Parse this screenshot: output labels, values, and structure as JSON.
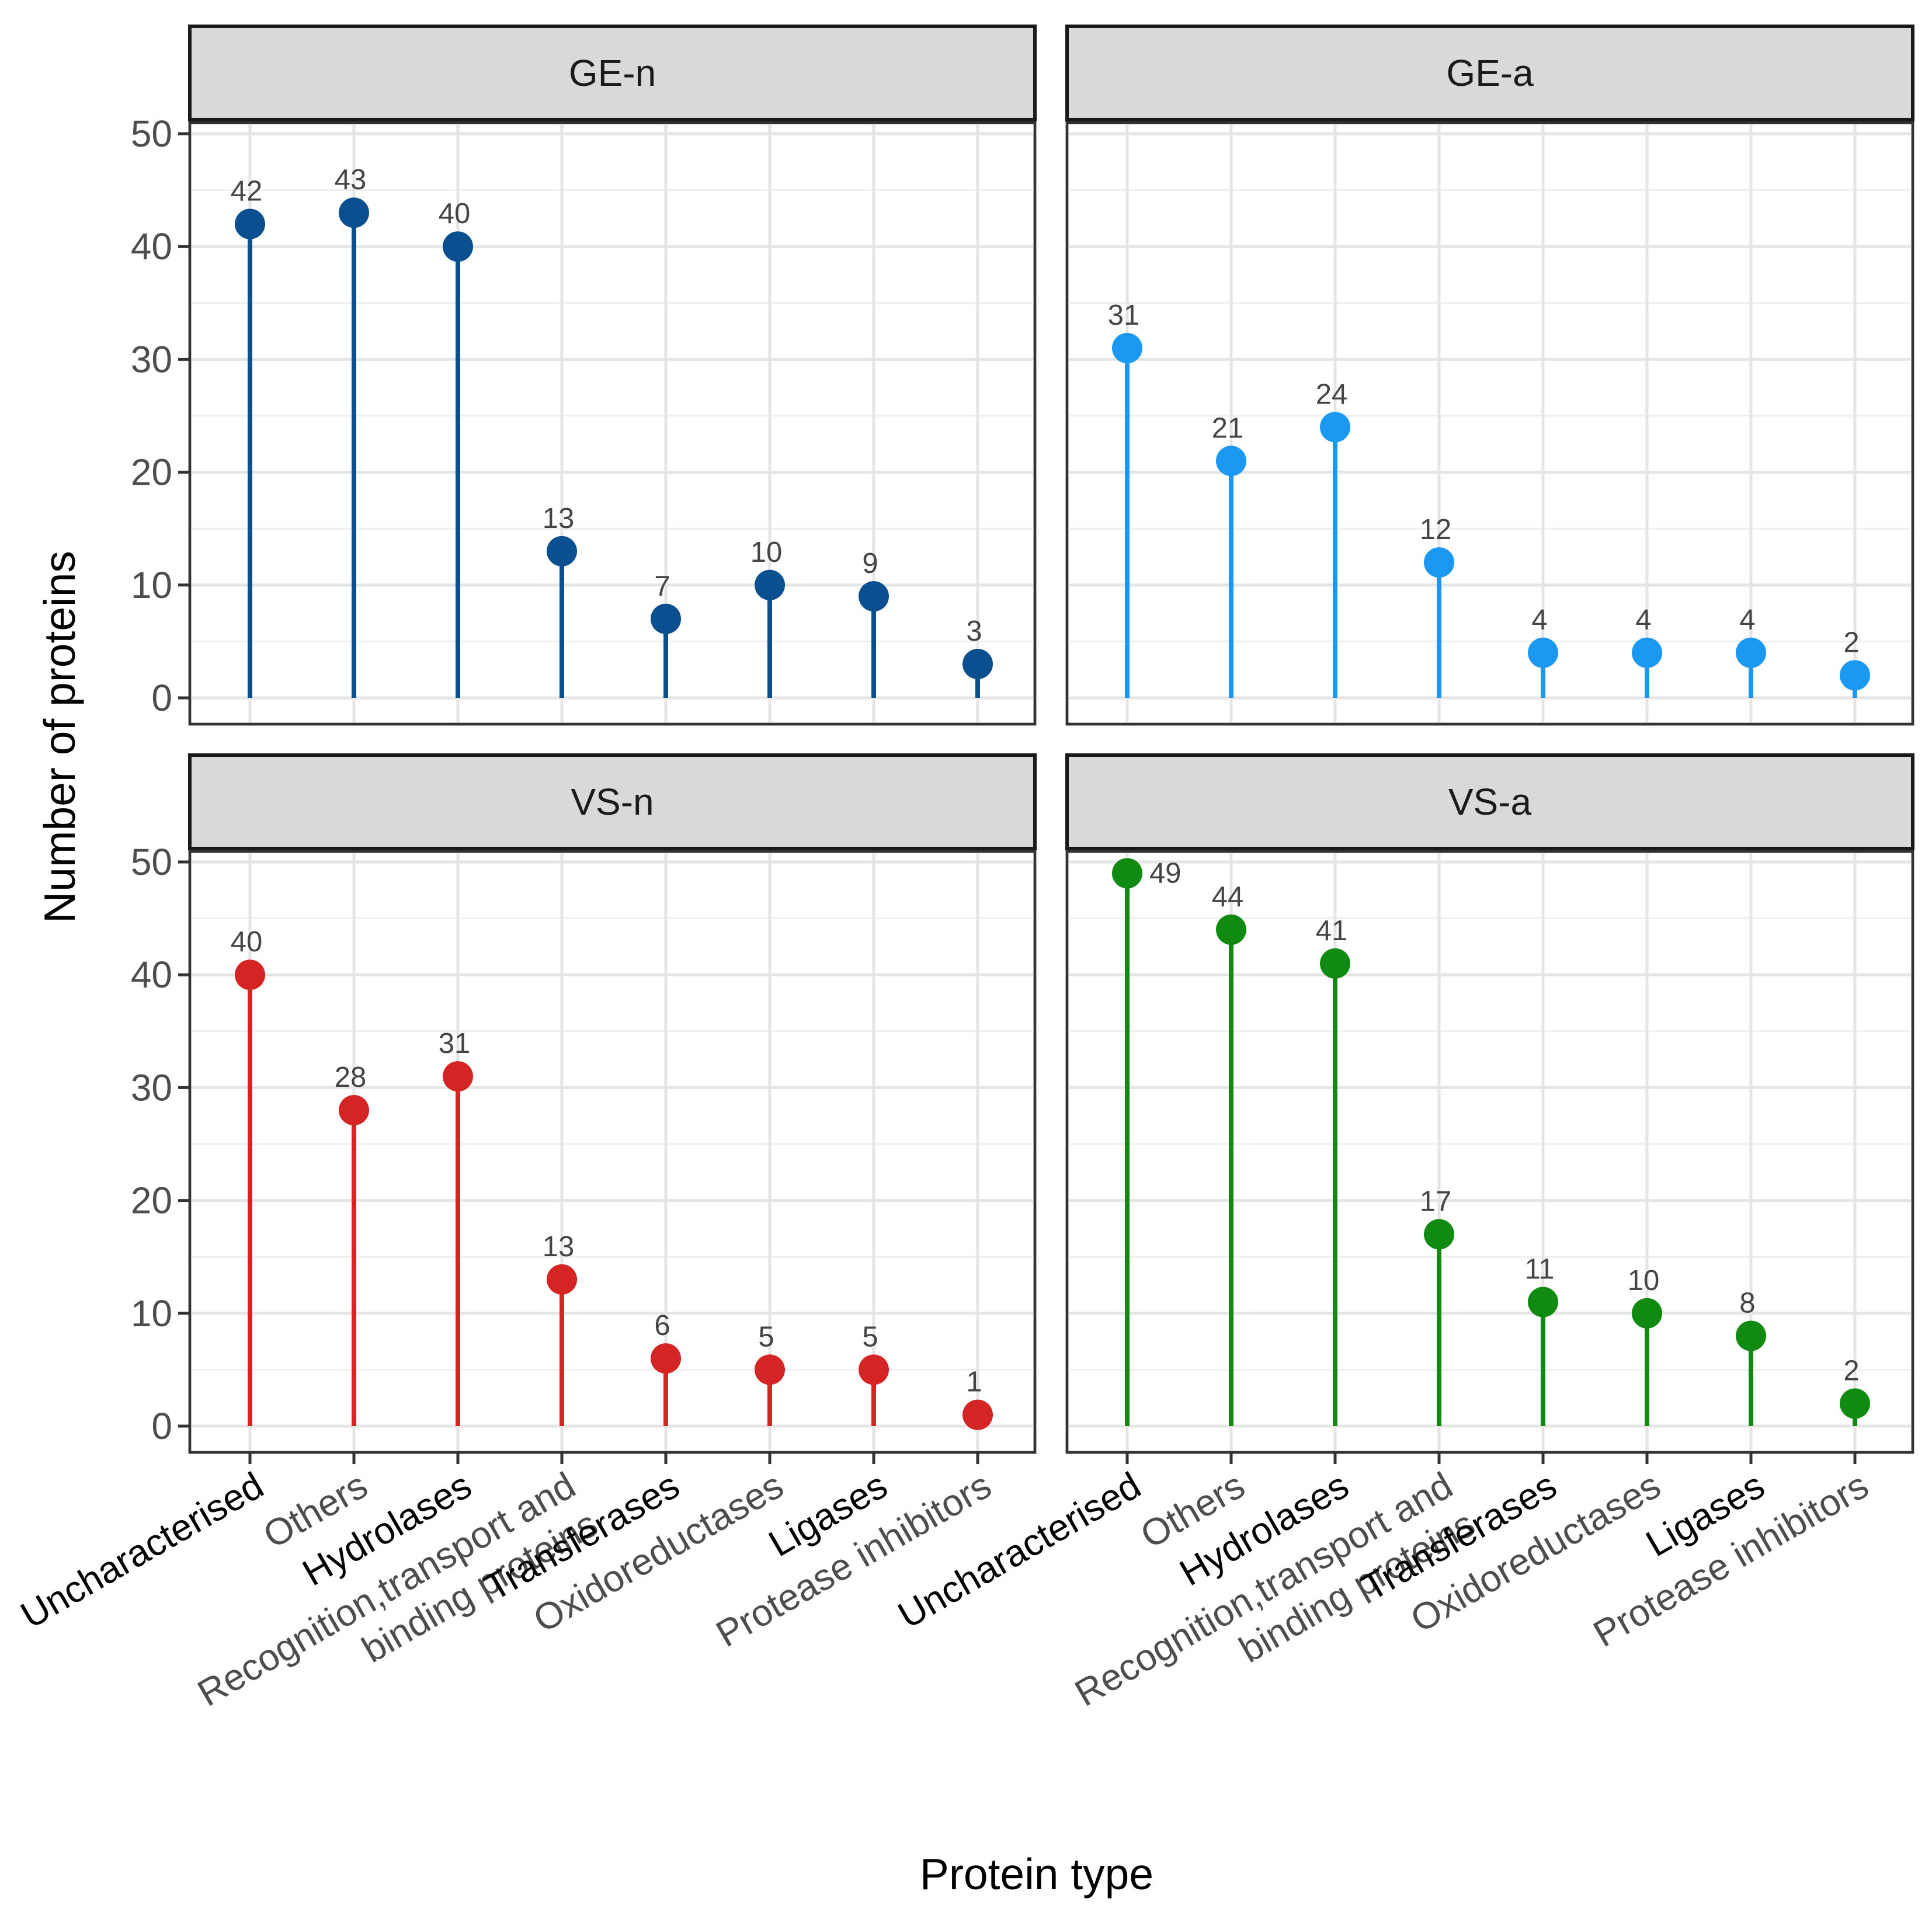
{
  "chart_data": {
    "type": "lollipop",
    "xlabel": "Protein type",
    "ylabel": "Number of proteins",
    "ylim": [
      0,
      52
    ],
    "yticks": [
      0,
      10,
      20,
      30,
      40,
      50
    ],
    "grid": true,
    "categories": [
      "Uncharacterised",
      "Others",
      "Hydrolases",
      "Recognition,transport and binding proteins",
      "Transferases",
      "Oxidoreductases",
      "Ligases",
      "Protease inhibitors"
    ],
    "category_label_lines": [
      [
        "Uncharacterised"
      ],
      [
        "Others"
      ],
      [
        "Hydrolases"
      ],
      [
        "Recognition,transport and",
        "binding proteins"
      ],
      [
        "Transferases"
      ],
      [
        "Oxidoreductases"
      ],
      [
        "Ligases"
      ],
      [
        "Protease inhibitors"
      ]
    ],
    "category_label_tone": [
      "dark",
      "grey",
      "dark",
      "grey",
      "dark",
      "grey",
      "dark",
      "grey"
    ],
    "panels": [
      {
        "name": "GE-n",
        "color": "#0a4f8f",
        "values": [
          42,
          43,
          40,
          13,
          7,
          10,
          9,
          3
        ]
      },
      {
        "name": "GE-a",
        "color": "#1a98f2",
        "values": [
          31,
          21,
          24,
          12,
          4,
          4,
          4,
          2
        ]
      },
      {
        "name": "VS-n",
        "color": "#d42424",
        "values": [
          40,
          28,
          31,
          13,
          6,
          5,
          5,
          1
        ]
      },
      {
        "name": "VS-a",
        "color": "#108a10",
        "values": [
          49,
          44,
          41,
          17,
          11,
          10,
          8,
          2
        ]
      }
    ]
  }
}
